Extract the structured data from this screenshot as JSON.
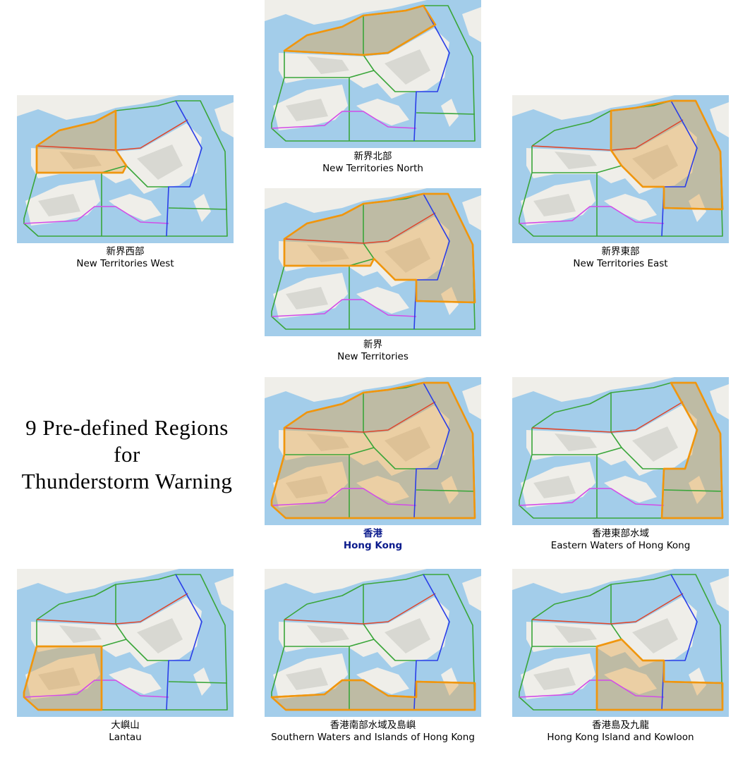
{
  "title": {
    "lines": [
      "9 Pre-defined Regions",
      "for",
      "Thunderstorm Warning"
    ]
  },
  "panels": [
    {
      "name_zh": "新界西部",
      "name_en": "New Territories West"
    },
    {
      "name_zh": "新界北部",
      "name_en": "New Territories North"
    },
    {
      "name_zh": "新界東部",
      "name_en": "New Territories East"
    },
    {
      "name_zh": "新界",
      "name_en": "New Territories"
    },
    {
      "name_zh": "香港",
      "name_en": "Hong Kong"
    },
    {
      "name_zh": "香港東部水域",
      "name_en": "Eastern Waters of Hong Kong"
    },
    {
      "name_zh": "大嶼山",
      "name_en": "Lantau"
    },
    {
      "name_zh": "香港南部水域及島嶼",
      "name_en": "Southern Waters and Islands of Hong Kong"
    },
    {
      "name_zh": "香港島及九龍",
      "name_en": "Hong Kong Island and Kowloon"
    }
  ]
}
